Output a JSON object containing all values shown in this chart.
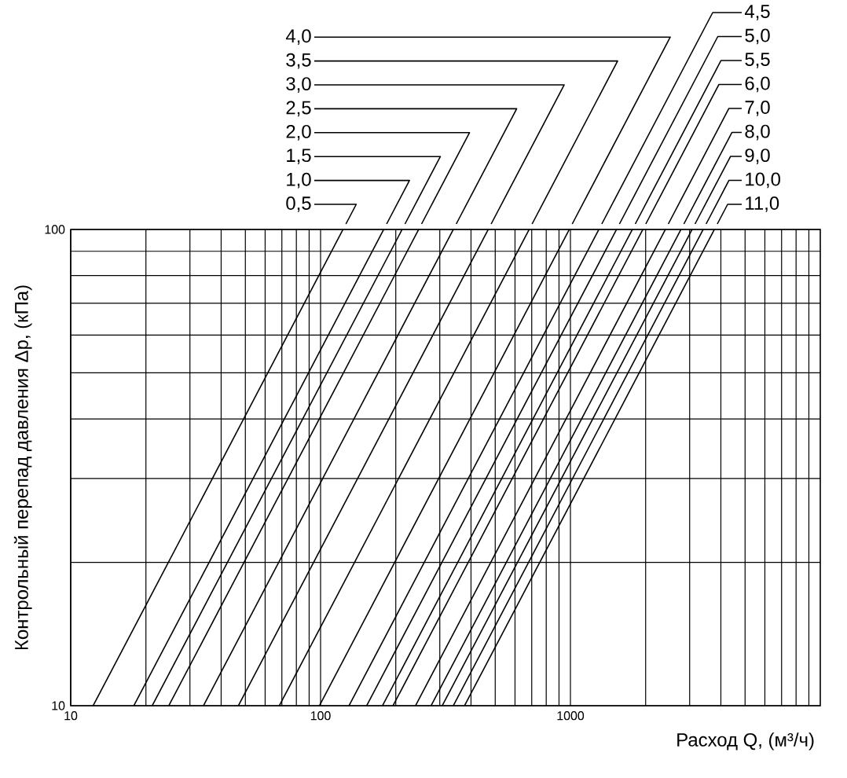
{
  "chart_data": {
    "type": "line",
    "xlabel": "Расход Q, (м³/ч)",
    "ylabel": "Контрольный перепад давления Δp, (кПа)",
    "log": "xy",
    "grid": true,
    "marker": "none",
    "line_style": "solid",
    "xlim": [
      10,
      10000
    ],
    "ylim": [
      10,
      100
    ],
    "xticks": [
      10,
      100,
      1000
    ],
    "yticks": [
      10,
      100
    ],
    "series": [
      {
        "name": "0,5",
        "color": "#000000",
        "x": [
          12.3,
          123
        ],
        "values": [
          10,
          100
        ]
      },
      {
        "name": "1,0",
        "color": "#000000",
        "x": [
          17.9,
          179
        ],
        "values": [
          10,
          100
        ]
      },
      {
        "name": "1,5",
        "color": "#000000",
        "x": [
          21.2,
          212
        ],
        "values": [
          10,
          100
        ]
      },
      {
        "name": "2,0",
        "color": "#000000",
        "x": [
          24.7,
          247
        ],
        "values": [
          10,
          100
        ]
      },
      {
        "name": "2,5",
        "color": "#000000",
        "x": [
          34,
          340
        ],
        "values": [
          10,
          100
        ]
      },
      {
        "name": "3,0",
        "color": "#000000",
        "x": [
          46.9,
          469
        ],
        "values": [
          10,
          100
        ]
      },
      {
        "name": "3,5",
        "color": "#000000",
        "x": [
          68.4,
          684
        ],
        "values": [
          10,
          100
        ]
      },
      {
        "name": "4,0",
        "color": "#000000",
        "x": [
          99,
          990
        ],
        "values": [
          10,
          100
        ]
      },
      {
        "name": "4,5",
        "color": "#000000",
        "x": [
          130,
          1300
        ],
        "values": [
          10,
          100
        ]
      },
      {
        "name": "5,0",
        "color": "#000000",
        "x": [
          153,
          1530
        ],
        "values": [
          10,
          100
        ]
      },
      {
        "name": "5,5",
        "color": "#000000",
        "x": [
          177,
          1770
        ],
        "values": [
          10,
          100
        ]
      },
      {
        "name": "6,0",
        "color": "#000000",
        "x": [
          195,
          1950
        ],
        "values": [
          10,
          100
        ]
      },
      {
        "name": "7,0",
        "color": "#000000",
        "x": [
          240,
          2400
        ],
        "values": [
          10,
          100
        ]
      },
      {
        "name": "8,0",
        "color": "#000000",
        "x": [
          277,
          2770
        ],
        "values": [
          10,
          100
        ]
      },
      {
        "name": "9,0",
        "color": "#000000",
        "x": [
          307,
          3070
        ],
        "values": [
          10,
          100
        ]
      },
      {
        "name": "10,0",
        "color": "#000000",
        "x": [
          340,
          3400
        ],
        "values": [
          10,
          100
        ]
      },
      {
        "name": "11,0",
        "color": "#000000",
        "x": [
          377,
          3770
        ],
        "values": [
          10,
          100
        ]
      }
    ]
  }
}
